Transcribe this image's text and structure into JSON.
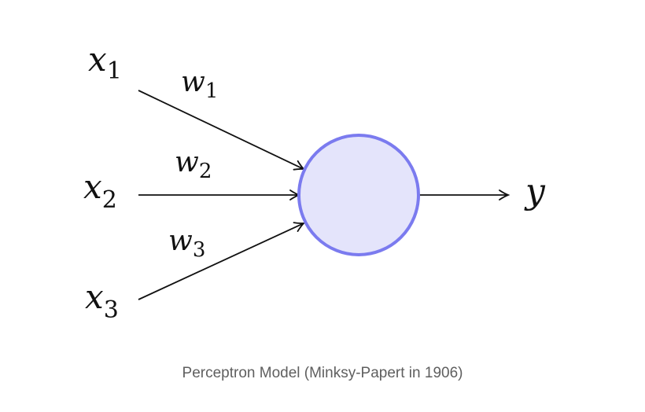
{
  "diagram": {
    "inputs": [
      {
        "symbol": "x",
        "subscript": "1"
      },
      {
        "symbol": "x",
        "subscript": "2"
      },
      {
        "symbol": "x",
        "subscript": "3"
      }
    ],
    "weights": [
      {
        "symbol": "w",
        "subscript": "1"
      },
      {
        "symbol": "w",
        "subscript": "2"
      },
      {
        "symbol": "w",
        "subscript": "3"
      }
    ],
    "output": {
      "symbol": "y"
    },
    "colors": {
      "neuron_fill": "#e4e4fb",
      "neuron_stroke": "#7b7bef",
      "edge": "#111111"
    }
  },
  "caption": "Perceptron Model (Minksy-Papert in 1906)"
}
